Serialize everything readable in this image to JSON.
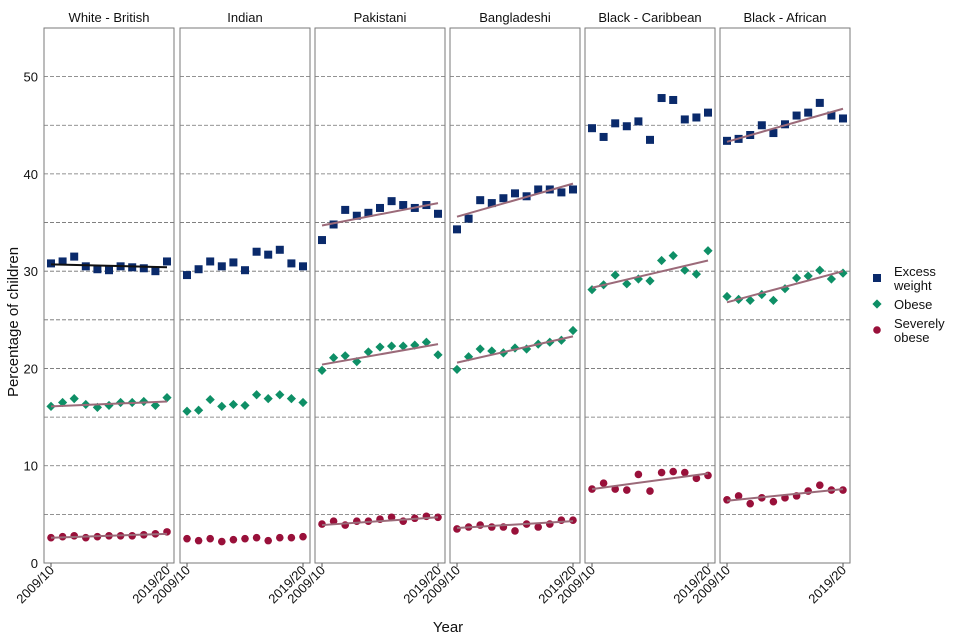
{
  "chart_data": {
    "type": "scatter",
    "xlabel": "Year",
    "ylabel": "Percentage of children",
    "ylim": [
      0,
      55
    ],
    "yticks": [
      0,
      10,
      20,
      30,
      40,
      50
    ],
    "x_tick_labels": [
      "2009/10",
      "2019/20"
    ],
    "years": [
      "2009/10",
      "2010/11",
      "2011/12",
      "2012/13",
      "2013/14",
      "2014/15",
      "2015/16",
      "2016/17",
      "2017/18",
      "2018/19",
      "2019/20"
    ],
    "legend": [
      {
        "label_lines": [
          "Excess",
          "weight"
        ],
        "color": "#0a2a6b",
        "shape": "square"
      },
      {
        "label_lines": [
          "Obese"
        ],
        "color": "#0e8f66",
        "shape": "diamond"
      },
      {
        "label_lines": [
          "Severely",
          "obese"
        ],
        "color": "#99103a",
        "shape": "circle"
      }
    ],
    "trend_color": "#9b6a79",
    "panels": [
      {
        "title": "White - British",
        "series": [
          {
            "name": "Excess weight",
            "values": [
              30.8,
              31.0,
              31.5,
              30.5,
              30.2,
              30.1,
              30.5,
              30.4,
              30.3,
              30.0,
              31.0
            ],
            "trend": [
              30.7,
              30.4
            ]
          },
          {
            "name": "Obese",
            "values": [
              16.1,
              16.5,
              16.9,
              16.3,
              16.0,
              16.2,
              16.5,
              16.5,
              16.6,
              16.2,
              17.0
            ],
            "trend": [
              16.1,
              16.6
            ]
          },
          {
            "name": "Severely obese",
            "values": [
              2.6,
              2.7,
              2.8,
              2.6,
              2.7,
              2.8,
              2.8,
              2.8,
              2.9,
              3.0,
              3.2
            ],
            "trend": [
              2.6,
              3.0
            ]
          }
        ]
      },
      {
        "title": "Indian",
        "series": [
          {
            "name": "Excess weight",
            "values": [
              29.6,
              30.2,
              31.0,
              30.5,
              30.9,
              30.1,
              32.0,
              31.7,
              32.2,
              30.8,
              30.5
            ]
          },
          {
            "name": "Obese",
            "values": [
              15.6,
              15.7,
              16.8,
              16.1,
              16.3,
              16.2,
              17.3,
              16.9,
              17.3,
              16.9,
              16.5
            ]
          },
          {
            "name": "Severely obese",
            "values": [
              2.5,
              2.3,
              2.5,
              2.2,
              2.4,
              2.5,
              2.6,
              2.3,
              2.6,
              2.6,
              2.7
            ]
          }
        ]
      },
      {
        "title": "Pakistani",
        "series": [
          {
            "name": "Excess weight",
            "values": [
              33.2,
              34.8,
              36.3,
              35.7,
              36.0,
              36.5,
              37.2,
              36.8,
              36.5,
              36.8,
              35.9
            ],
            "trend": [
              34.7,
              37.0
            ]
          },
          {
            "name": "Obese",
            "values": [
              19.8,
              21.1,
              21.3,
              20.7,
              21.7,
              22.2,
              22.3,
              22.3,
              22.4,
              22.7,
              21.4
            ],
            "trend": [
              20.4,
              22.5
            ]
          },
          {
            "name": "Severely obese",
            "values": [
              4.0,
              4.3,
              3.9,
              4.3,
              4.3,
              4.5,
              4.7,
              4.3,
              4.6,
              4.8,
              4.7
            ],
            "trend": [
              3.9,
              4.7
            ]
          }
        ]
      },
      {
        "title": "Bangladeshi",
        "series": [
          {
            "name": "Excess weight",
            "values": [
              34.3,
              35.4,
              37.3,
              37.0,
              37.5,
              38.0,
              37.7,
              38.4,
              38.4,
              38.1,
              38.4
            ],
            "trend": [
              35.6,
              39.0
            ]
          },
          {
            "name": "Obese",
            "values": [
              19.9,
              21.2,
              22.0,
              21.8,
              21.6,
              22.1,
              22.0,
              22.5,
              22.7,
              22.9,
              23.9
            ],
            "trend": [
              20.6,
              23.3
            ]
          },
          {
            "name": "Severely obese",
            "values": [
              3.5,
              3.7,
              3.9,
              3.7,
              3.7,
              3.3,
              4.0,
              3.7,
              4.0,
              4.4,
              4.4
            ],
            "trend": [
              3.6,
              4.3
            ]
          }
        ]
      },
      {
        "title": "Black - Caribbean",
        "series": [
          {
            "name": "Excess weight",
            "values": [
              44.7,
              43.8,
              45.2,
              44.9,
              45.4,
              43.5,
              47.8,
              47.6,
              45.6,
              45.8,
              46.3
            ]
          },
          {
            "name": "Obese",
            "values": [
              28.1,
              28.6,
              29.6,
              28.7,
              29.2,
              29.0,
              31.1,
              31.6,
              30.1,
              29.7,
              32.1
            ],
            "trend": [
              28.3,
              31.1
            ]
          },
          {
            "name": "Severely obese",
            "values": [
              7.6,
              8.2,
              7.6,
              7.5,
              9.1,
              7.4,
              9.3,
              9.4,
              9.3,
              8.7,
              9.0
            ],
            "trend": [
              7.6,
              9.2
            ]
          }
        ]
      },
      {
        "title": "Black - African",
        "series": [
          {
            "name": "Excess weight",
            "values": [
              43.4,
              43.6,
              44.0,
              45.0,
              44.2,
              45.1,
              46.0,
              46.3,
              47.3,
              46.0,
              45.7
            ],
            "trend": [
              43.3,
              46.7
            ]
          },
          {
            "name": "Obese",
            "values": [
              27.4,
              27.1,
              27.0,
              27.6,
              27.0,
              28.2,
              29.3,
              29.5,
              30.1,
              29.2,
              29.8
            ],
            "trend": [
              26.8,
              30.0
            ]
          },
          {
            "name": "Severely obese",
            "values": [
              6.5,
              6.9,
              6.1,
              6.7,
              6.3,
              6.7,
              6.9,
              7.4,
              8.0,
              7.5,
              7.5
            ],
            "trend": [
              6.4,
              7.6
            ]
          }
        ]
      }
    ]
  }
}
